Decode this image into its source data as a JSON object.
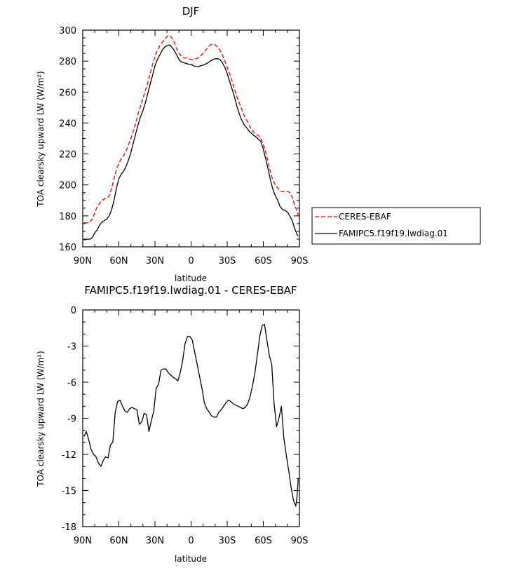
{
  "chart_data": [
    {
      "type": "line",
      "title": "DJF",
      "xlabel": "latitude",
      "ylabel": "TOA clearsky upward LW (W/m²)",
      "xlim": [
        90,
        -90
      ],
      "ylim": [
        160,
        300
      ],
      "x_tick_values": [
        90,
        60,
        30,
        0,
        -30,
        -60,
        -90
      ],
      "x_tick_labels": [
        "90N",
        "60N",
        "30N",
        "0",
        "30S",
        "60S",
        "90S"
      ],
      "y_ticks": [
        160,
        180,
        200,
        220,
        240,
        260,
        280,
        300
      ],
      "legend": {
        "placement": "right"
      },
      "series": [
        {
          "name": "CERES-EBAF",
          "color": "#ff0000",
          "style": "dashed",
          "x": [
            89,
            86,
            84,
            82,
            80,
            78,
            76,
            74,
            72,
            70,
            68,
            66,
            64,
            62,
            60,
            58,
            56,
            54,
            52,
            50,
            48,
            46,
            44,
            42,
            40,
            38,
            36,
            34,
            32,
            30,
            28,
            26,
            24,
            22,
            20,
            18,
            16,
            14,
            12,
            10,
            8,
            6,
            4,
            2,
            0,
            -2,
            -4,
            -6,
            -8,
            -10,
            -12,
            -14,
            -16,
            -18,
            -20,
            -22,
            -24,
            -26,
            -28,
            -30,
            -32,
            -34,
            -36,
            -38,
            -40,
            -42,
            -44,
            -46,
            -48,
            -50,
            -52,
            -54,
            -56,
            -58,
            -60,
            -62,
            -64,
            -66,
            -68,
            -70,
            -72,
            -74,
            -76,
            -78,
            -80,
            -82,
            -84,
            -86,
            -88,
            -89
          ],
          "y": [
            175.5,
            175.5,
            176,
            178,
            182,
            186,
            188,
            190,
            191,
            191,
            193,
            198,
            204,
            210,
            214,
            217,
            219,
            222,
            226,
            230,
            235,
            240,
            246,
            251,
            256,
            261,
            266,
            272,
            278,
            283,
            287,
            290,
            292,
            294,
            296,
            296.5,
            295,
            292,
            288,
            285,
            283,
            282,
            282,
            281.5,
            281,
            281,
            281.5,
            282,
            283.5,
            285,
            287,
            289,
            290.5,
            291,
            290.5,
            289,
            287,
            284,
            280,
            276,
            272,
            267,
            262,
            257,
            253,
            249,
            245,
            242,
            239,
            236,
            234,
            232.5,
            232,
            230,
            226,
            221,
            215,
            208,
            203,
            200,
            198,
            196,
            195.5,
            196,
            196,
            195,
            192,
            187,
            183,
            180
          ]
        },
        {
          "name": "FAMIPC5.f19f19.lwdiag.01",
          "color": "#000000",
          "style": "solid",
          "x": [
            89,
            86,
            84,
            82,
            80,
            78,
            76,
            74,
            72,
            70,
            68,
            66,
            64,
            62,
            60,
            58,
            56,
            54,
            52,
            50,
            48,
            46,
            44,
            42,
            40,
            38,
            36,
            34,
            32,
            30,
            28,
            26,
            24,
            22,
            20,
            18,
            16,
            14,
            12,
            10,
            8,
            6,
            4,
            2,
            0,
            -2,
            -4,
            -6,
            -8,
            -10,
            -12,
            -14,
            -16,
            -18,
            -20,
            -22,
            -24,
            -26,
            -28,
            -30,
            -32,
            -34,
            -36,
            -38,
            -40,
            -42,
            -44,
            -46,
            -48,
            -50,
            -52,
            -54,
            -56,
            -58,
            -60,
            -62,
            -64,
            -66,
            -68,
            -70,
            -72,
            -74,
            -76,
            -78,
            -80,
            -82,
            -84,
            -86,
            -88,
            -89
          ],
          "y": [
            164.5,
            165,
            165,
            166,
            169,
            171,
            174,
            176,
            177,
            178,
            180,
            184,
            190,
            198,
            204,
            207,
            209,
            212,
            216,
            221,
            227,
            233,
            239,
            244,
            248,
            253,
            259,
            265,
            271,
            277,
            281,
            284,
            287,
            289,
            290,
            290.5,
            289,
            287,
            284,
            281,
            279.5,
            279,
            278.5,
            278,
            278,
            277,
            276.5,
            276.5,
            277,
            277.5,
            278,
            279,
            280,
            281,
            281.5,
            281.5,
            281,
            279,
            276,
            272,
            267,
            262,
            257,
            251,
            246,
            242,
            239,
            237,
            235,
            233.5,
            232,
            231,
            229.5,
            228,
            223,
            217,
            210,
            203,
            197,
            193,
            190,
            186,
            184,
            183.5,
            182.5,
            180,
            177,
            172,
            168,
            167
          ]
        }
      ]
    },
    {
      "type": "line",
      "title": "FAMIPC5.f19f19.lwdiag.01 - CERES-EBAF",
      "xlabel": "latitude",
      "ylabel": "TOA clearsky upward LW (W/m²)",
      "xlim": [
        90,
        -90
      ],
      "ylim": [
        -18,
        0
      ],
      "x_tick_values": [
        90,
        60,
        30,
        0,
        -30,
        -60,
        -90
      ],
      "x_tick_labels": [
        "90N",
        "60N",
        "30N",
        "0",
        "30S",
        "60S",
        "90S"
      ],
      "y_ticks": [
        -18,
        -15,
        -12,
        -9,
        -6,
        -3,
        0
      ],
      "series": [
        {
          "color": "#000000",
          "style": "solid",
          "x": [
            89,
            87,
            85,
            83,
            81,
            79,
            77,
            75,
            73,
            71,
            69,
            67,
            65,
            63,
            61,
            59,
            57,
            55,
            53,
            51,
            49,
            47,
            45,
            43,
            41,
            39,
            37,
            35,
            33,
            31,
            29,
            27,
            25,
            23,
            21,
            19,
            17,
            15,
            13,
            11,
            9,
            7,
            5,
            3,
            1,
            -1,
            -3,
            -5,
            -7,
            -9,
            -11,
            -13,
            -15,
            -17,
            -19,
            -21,
            -23,
            -25,
            -27,
            -29,
            -31,
            -33,
            -35,
            -37,
            -39,
            -41,
            -43,
            -45,
            -47,
            -49,
            -51,
            -53,
            -55,
            -57,
            -59,
            -61,
            -63,
            -65,
            -67,
            -69,
            -71,
            -73,
            -75,
            -77,
            -79,
            -81,
            -83,
            -85,
            -87,
            -88,
            -89
          ],
          "y": [
            -10.5,
            -10.1,
            -10.8,
            -11.6,
            -12,
            -12.2,
            -12.7,
            -13,
            -12.5,
            -12.2,
            -12.3,
            -11.2,
            -11,
            -8.5,
            -7.6,
            -7.5,
            -8,
            -8.4,
            -8.5,
            -8.2,
            -8.1,
            -8.2,
            -8.3,
            -9.5,
            -9.3,
            -8.6,
            -8.7,
            -10.1,
            -9.2,
            -8.4,
            -6.5,
            -6.2,
            -5,
            -4.9,
            -4.9,
            -5.2,
            -5.4,
            -5.6,
            -5.7,
            -5.9,
            -5.2,
            -4.2,
            -2.8,
            -2.2,
            -2.2,
            -2.5,
            -3.5,
            -4.5,
            -5.5,
            -6.5,
            -7.7,
            -8.2,
            -8.5,
            -8.8,
            -8.9,
            -8.9,
            -8.5,
            -8.3,
            -8,
            -7.7,
            -7.5,
            -7.6,
            -7.8,
            -7.9,
            -8,
            -8.1,
            -8.2,
            -8.1,
            -7.8,
            -7.2,
            -6.3,
            -5.2,
            -3.8,
            -2.2,
            -1.3,
            -1.2,
            -2.5,
            -3.8,
            -4.5,
            -7.8,
            -9.7,
            -9,
            -8,
            -10.6,
            -12,
            -13.3,
            -14.7,
            -15.8,
            -16.3,
            -15.5,
            -14
          ]
        }
      ]
    }
  ]
}
